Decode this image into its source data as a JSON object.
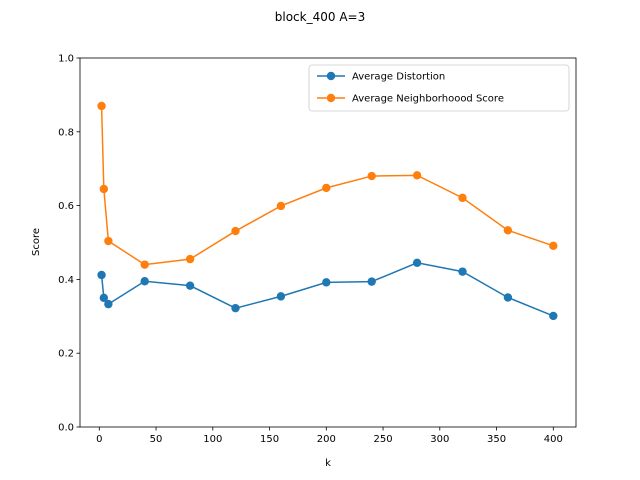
{
  "chart_data": {
    "type": "line",
    "title": "block_400 A=3",
    "xlabel": "k",
    "ylabel": "Score",
    "xlim": [
      -17,
      420
    ],
    "ylim": [
      0,
      1.0
    ],
    "xticks": [
      0,
      50,
      100,
      150,
      200,
      250,
      300,
      350,
      400
    ],
    "yticks": [
      0.0,
      0.2,
      0.4,
      0.6,
      0.8,
      1.0
    ],
    "xtick_labels": [
      "0",
      "50",
      "100",
      "150",
      "200",
      "250",
      "300",
      "350",
      "400"
    ],
    "ytick_labels": [
      "0.0",
      "0.2",
      "0.4",
      "0.6",
      "0.8",
      "1.0"
    ],
    "legend_position": "top-right",
    "grid": false,
    "series": [
      {
        "name": "Average Distortion",
        "color": "#1f77b4",
        "marker": "circle",
        "x": [
          2,
          4,
          8,
          40,
          80,
          120,
          160,
          200,
          240,
          280,
          320,
          360,
          400
        ],
        "y": [
          0.412,
          0.35,
          0.333,
          0.395,
          0.383,
          0.322,
          0.354,
          0.392,
          0.394,
          0.445,
          0.421,
          0.351,
          0.301
        ]
      },
      {
        "name": "Average Neighborhoood Score",
        "color": "#ff7f0e",
        "marker": "circle",
        "x": [
          2,
          4,
          8,
          40,
          80,
          120,
          160,
          200,
          240,
          280,
          320,
          360,
          400
        ],
        "y": [
          0.87,
          0.645,
          0.504,
          0.44,
          0.455,
          0.531,
          0.599,
          0.648,
          0.68,
          0.682,
          0.621,
          0.533,
          0.491
        ]
      }
    ]
  }
}
